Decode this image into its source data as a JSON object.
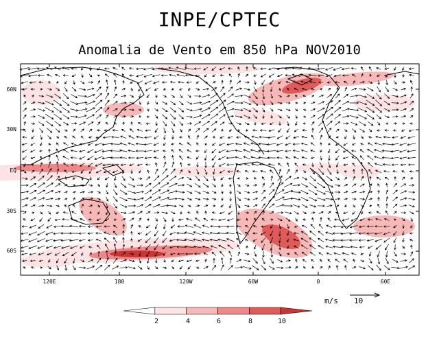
{
  "header": {
    "title": "INPE/CPTEC",
    "subtitle": "Anomalia de Vento em 850 hPa NOV2010"
  },
  "map": {
    "lat_labels": [
      "60N",
      "30N",
      "EQ",
      "30S",
      "60S"
    ],
    "lon_labels": [
      "120E",
      "180",
      "120W",
      "60W",
      "0",
      "60E"
    ]
  },
  "reference_vector": {
    "units": "m/s",
    "value": "10"
  },
  "colorbar": {
    "levels": [
      "2",
      "4",
      "6",
      "8",
      "10"
    ],
    "colors": [
      "#ffffff",
      "#fde3e3",
      "#f7b8b8",
      "#ee8888",
      "#e05a5a",
      "#c93535"
    ]
  }
}
